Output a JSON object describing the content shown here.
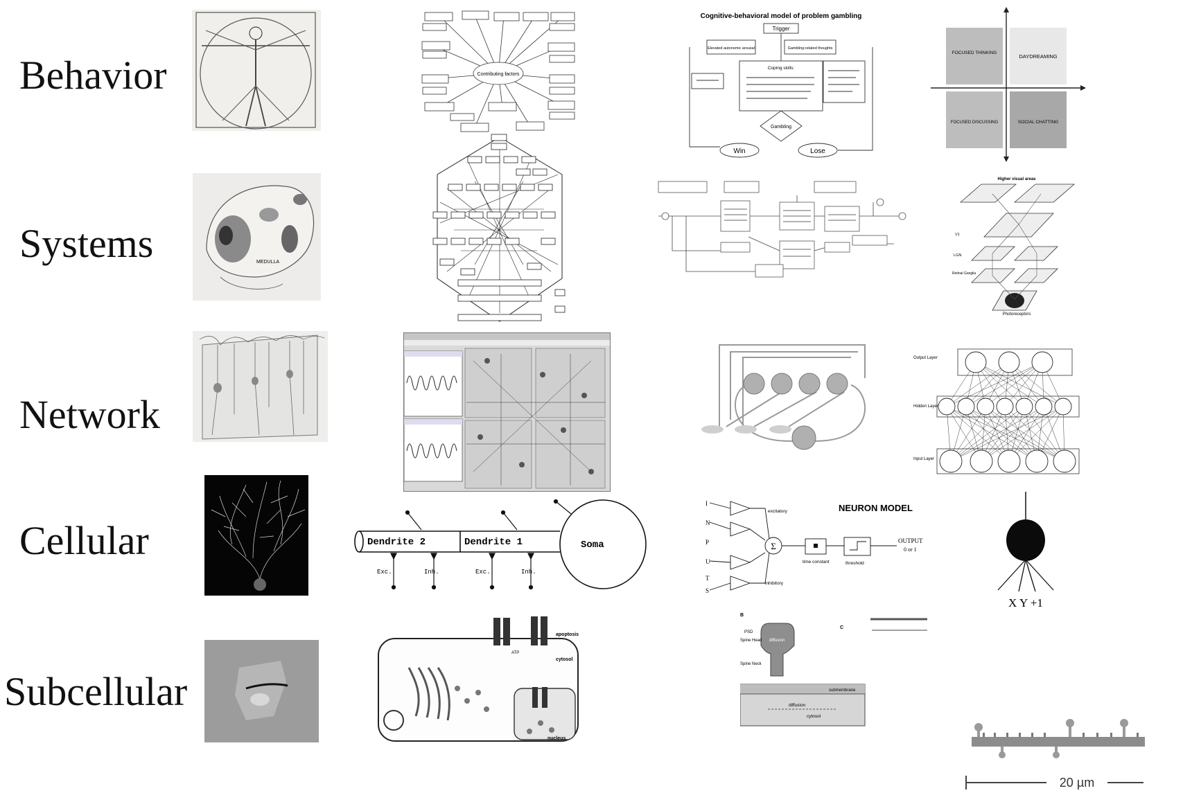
{
  "rows": [
    {
      "label": "Behavior"
    },
    {
      "label": "Systems"
    },
    {
      "label": "Network"
    },
    {
      "label": "Cellular"
    },
    {
      "label": "Subcellular"
    }
  ],
  "behavior": {
    "center_node": "Contributing   factors",
    "gambling_model": {
      "title": "Cognitive-behavioral model of problem gambling",
      "trigger": "Trigger",
      "arousal": "Elevated autonomic arousal",
      "thoughts": "Gambling-related thoughts",
      "coping": "Coping skills:",
      "gambling": "Gambling",
      "win": "Win",
      "lose": "Lose"
    },
    "quadrant": {
      "focused_thinking": "FOCUSED THINKING",
      "daydreaming": "DAYDREAMING",
      "focused_discussing": "FOCUSED DISCUSSING",
      "social_chatting": "SOCIAL CHATTING"
    }
  },
  "systems": {
    "visual_title": "Higher visual areas",
    "v1": "V1",
    "lgn": "LGN",
    "retinal": "Retinal Ganglia",
    "photoreceptors": "Photoreceptors",
    "medulla": "MEDULLA"
  },
  "network": {
    "output_layer": "Output Layer",
    "hidden_layer": "Hidden Layer",
    "input_layer": "Input Layer"
  },
  "cellular": {
    "dendrite2": "Dendrite 2",
    "dendrite1": "Dendrite 1",
    "soma": "Soma",
    "exc": "Exc.",
    "inh": "Inh.",
    "neuron_model_title": "NEURON MODEL",
    "input_letters": [
      "I",
      "N",
      "P",
      "U",
      "T",
      "S"
    ],
    "excitatory": "excitatory",
    "inhibitory": "inhibitory",
    "sigma": "Σ",
    "time_constant": "time constant",
    "threshold": "threshold",
    "output": "OUTPUT",
    "output_sub": "0 or 1",
    "perceptron_inputs": "X   Y   +1"
  },
  "subcellular": {
    "apoptosis": "apoptosis",
    "cytosol": "cytosol",
    "nucleus": "nucleus",
    "atp": "ATP",
    "spine_b": "B",
    "spine_c": "C",
    "psd": "PSD",
    "spine_head": "Spine Head",
    "spine_neck": "Spine Neck",
    "diffusion": "diffusion",
    "submembrane": "submembrane",
    "cytosol2": "cytosol",
    "scale_bar": "20 µm"
  }
}
